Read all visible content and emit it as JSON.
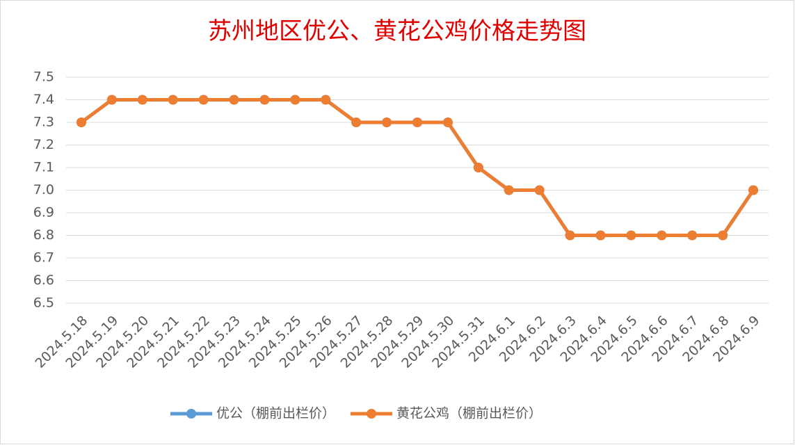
{
  "chart_data": {
    "type": "line",
    "title": "苏州地区优公、黄花公鸡价格走势图",
    "categories": [
      "2024.5.18",
      "2024.5.19",
      "2024.5.20",
      "2024.5.21",
      "2024.5.22",
      "2024.5.23",
      "2024.5.24",
      "2024.5.25",
      "2024.5.26",
      "2024.5.27",
      "2024.5.28",
      "2024.5.29",
      "2024.5.30",
      "2024.5.31",
      "2024.6.1",
      "2024.6.2",
      "2024.6.3",
      "2024.6.4",
      "2024.6.5",
      "2024.6.6",
      "2024.6.7",
      "2024.6.8",
      "2024.6.9"
    ],
    "series": [
      {
        "name": "优公（棚前出栏价）",
        "color": "#5b9bd5",
        "values": [
          7.3,
          7.4,
          7.4,
          7.4,
          7.4,
          7.4,
          7.4,
          7.4,
          7.4,
          7.3,
          7.3,
          7.3,
          7.3,
          7.1,
          7.0,
          7.0,
          6.8,
          6.8,
          6.8,
          6.8,
          6.8,
          6.8,
          7.0
        ]
      },
      {
        "name": "黄花公鸡（棚前出栏价）",
        "color": "#ed7d31",
        "values": [
          7.3,
          7.4,
          7.4,
          7.4,
          7.4,
          7.4,
          7.4,
          7.4,
          7.4,
          7.3,
          7.3,
          7.3,
          7.3,
          7.1,
          7.0,
          7.0,
          6.8,
          6.8,
          6.8,
          6.8,
          6.8,
          6.8,
          7.0
        ]
      }
    ],
    "ylim": [
      6.5,
      7.5
    ],
    "yticks": [
      6.5,
      6.6,
      6.7,
      6.8,
      6.9,
      {
        "value": 7,
        "label": "7.0"
      },
      7.1,
      7.2,
      7.3,
      7.4,
      7.5
    ],
    "grid": true,
    "legend": "bottom"
  }
}
